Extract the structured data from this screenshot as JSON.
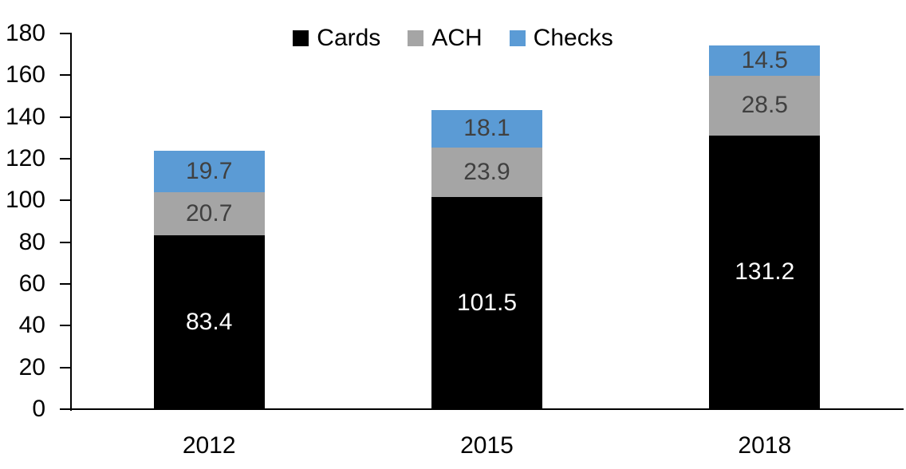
{
  "chart_data": {
    "type": "bar",
    "stacked": true,
    "title": "",
    "categories": [
      "2012",
      "2015",
      "2018"
    ],
    "series": [
      {
        "name": "Cards",
        "color": "#000000",
        "label_color": "#ffffff",
        "values": [
          83.4,
          101.5,
          131.2
        ]
      },
      {
        "name": "ACH",
        "color": "#a5a5a5",
        "label_color": "#404040",
        "values": [
          20.7,
          23.9,
          28.5
        ]
      },
      {
        "name": "Checks",
        "color": "#5b9bd5",
        "label_color": "#404040",
        "values": [
          19.7,
          18.1,
          14.5
        ]
      }
    ],
    "xlabel": "",
    "ylabel": "",
    "ylim": [
      0,
      180
    ],
    "yticks": [
      0,
      20,
      40,
      60,
      80,
      100,
      120,
      140,
      160,
      180
    ],
    "grid": false,
    "legend_position": "top-center",
    "axis_color": "#000000"
  }
}
